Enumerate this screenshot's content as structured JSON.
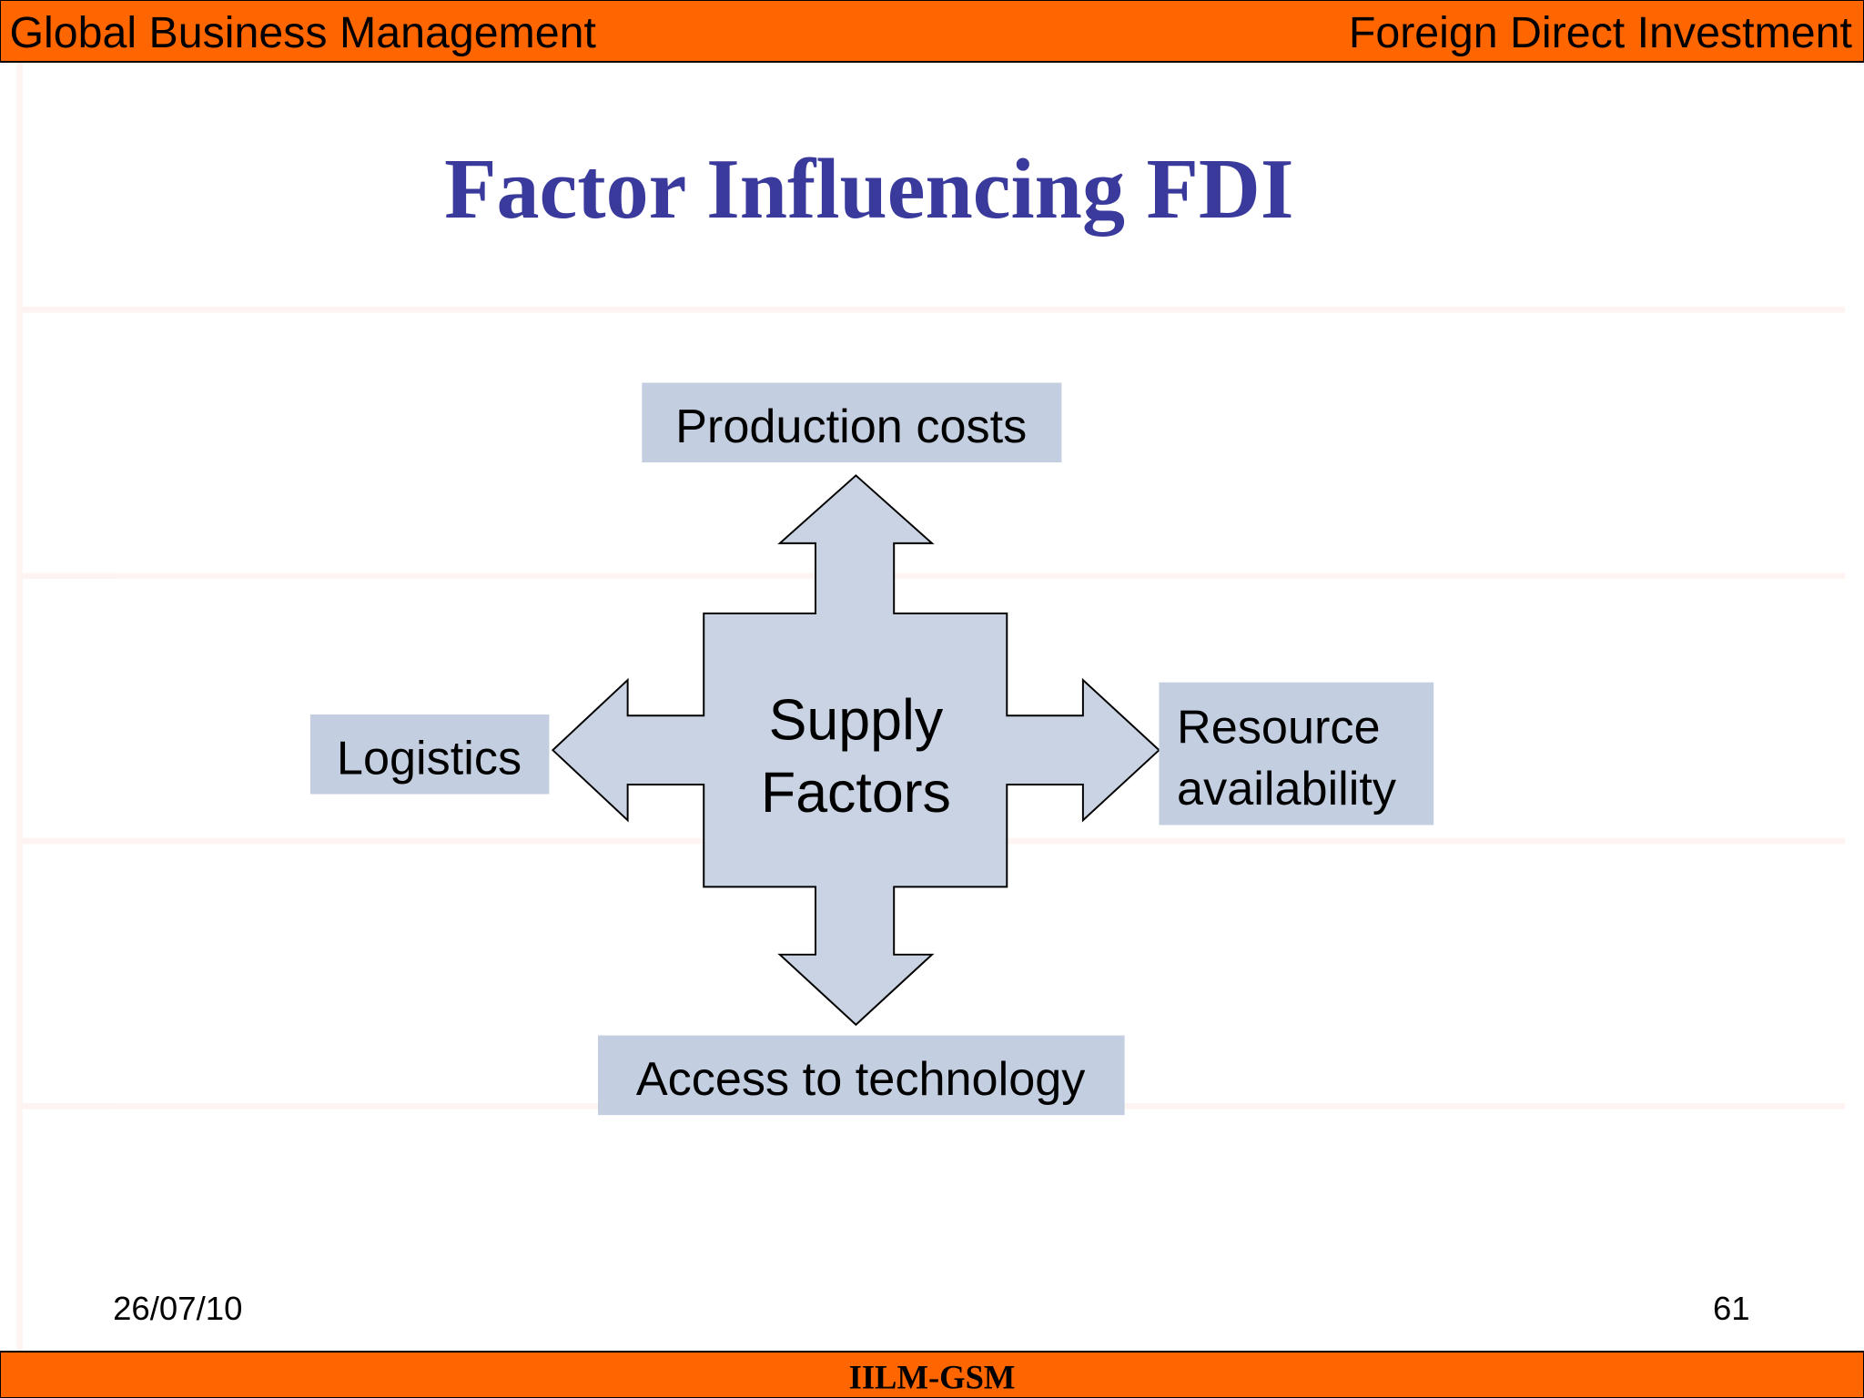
{
  "header": {
    "left_title": "Global Business Management",
    "right_title": "Foreign Direct Investment"
  },
  "slide": {
    "title": "Factor Influencing FDI",
    "center": {
      "line1": "Supply",
      "line2": "Factors"
    },
    "factors": {
      "top": "Production costs",
      "left": "Logistics",
      "right_line1": "Resource",
      "right_line2": "availability",
      "bottom": "Access to technology"
    }
  },
  "footer": {
    "date": "26/07/10",
    "page_number": "61",
    "label": "IILM-GSM"
  },
  "colors": {
    "header_bar": "#ff6600",
    "title": "#3a3a9c",
    "shape_fill": "#c9d3e3",
    "box_fill": "#c3cee0"
  }
}
